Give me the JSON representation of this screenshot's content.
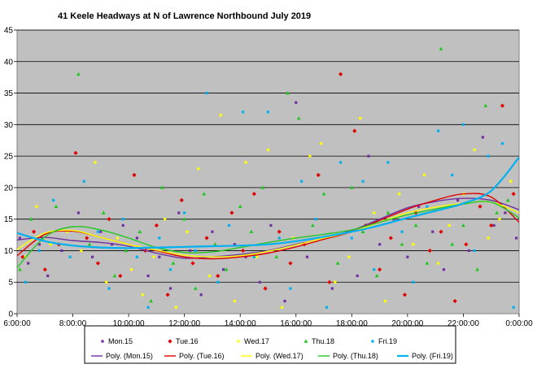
{
  "chart_data": {
    "type": "scatter",
    "title": "41 Keele Headways  at N of Lawrence  Northbound  July 2019",
    "x_ticks": [
      "6:00:00",
      "8:00:00",
      "10:00:00",
      "12:00:00",
      "14:00:00",
      "16:00:00",
      "18:00:00",
      "20:00:00",
      "22:00:00",
      "0:00:00"
    ],
    "x_range_hours": [
      6,
      24
    ],
    "ylim": [
      0,
      45
    ],
    "y_ticks": [
      0,
      5,
      10,
      15,
      20,
      25,
      30,
      35,
      40,
      45
    ],
    "grid": true,
    "plot_background": "#c0c0c0",
    "legend_position": "bottom",
    "series": [
      {
        "name": "Mon.15",
        "color": "#7030a0",
        "marker": "square",
        "points": [
          [
            6.1,
            12
          ],
          [
            6.4,
            8
          ],
          [
            6.8,
            11
          ],
          [
            7.1,
            6
          ],
          [
            7.6,
            10
          ],
          [
            8.2,
            16
          ],
          [
            8.7,
            9
          ],
          [
            9.0,
            13
          ],
          [
            9.4,
            11
          ],
          [
            9.8,
            14
          ],
          [
            10.3,
            12
          ],
          [
            10.7,
            6
          ],
          [
            11.1,
            9
          ],
          [
            11.5,
            4
          ],
          [
            11.8,
            16
          ],
          [
            12.2,
            10
          ],
          [
            12.6,
            3
          ],
          [
            13.0,
            13
          ],
          [
            13.4,
            7
          ],
          [
            13.8,
            11
          ],
          [
            14.2,
            9
          ],
          [
            14.7,
            5
          ],
          [
            15.1,
            14
          ],
          [
            15.6,
            2
          ],
          [
            16.0,
            33.5
          ],
          [
            16.4,
            9
          ],
          [
            16.9,
            12
          ],
          [
            17.3,
            4
          ],
          [
            17.8,
            13
          ],
          [
            18.2,
            6
          ],
          [
            18.6,
            25
          ],
          [
            19.0,
            11
          ],
          [
            19.5,
            15
          ],
          [
            20.0,
            9
          ],
          [
            20.4,
            17
          ],
          [
            20.9,
            13
          ],
          [
            21.3,
            7
          ],
          [
            21.8,
            18
          ],
          [
            22.2,
            10
          ],
          [
            22.7,
            28
          ],
          [
            23.1,
            14
          ],
          [
            23.5,
            16
          ],
          [
            23.9,
            12
          ]
        ],
        "trend": [
          [
            6,
            11.7
          ],
          [
            7,
            12.1
          ],
          [
            8,
            11.6
          ],
          [
            9,
            11.3
          ],
          [
            10,
            10.7
          ],
          [
            11,
            9.6
          ],
          [
            12,
            8.8
          ],
          [
            13,
            9.0
          ],
          [
            14,
            9.4
          ],
          [
            15,
            10.0
          ],
          [
            16,
            11.0
          ],
          [
            17,
            12.0
          ],
          [
            18,
            13.2
          ],
          [
            19,
            15.0
          ],
          [
            20,
            16.8
          ],
          [
            21,
            17.8
          ],
          [
            22,
            18.3
          ],
          [
            23,
            18.0
          ],
          [
            24,
            16.5
          ]
        ]
      },
      {
        "name": "Tue.16",
        "color": "#e00000",
        "marker": "diamond",
        "points": [
          [
            6.2,
            9
          ],
          [
            6.6,
            13
          ],
          [
            7.0,
            7
          ],
          [
            7.5,
            11
          ],
          [
            8.1,
            25.5
          ],
          [
            8.5,
            12
          ],
          [
            8.9,
            8
          ],
          [
            9.3,
            15
          ],
          [
            9.7,
            6
          ],
          [
            10.2,
            22
          ],
          [
            10.6,
            10
          ],
          [
            11.0,
            14
          ],
          [
            11.4,
            3
          ],
          [
            11.9,
            18
          ],
          [
            12.3,
            8
          ],
          [
            12.8,
            12
          ],
          [
            13.2,
            6
          ],
          [
            13.7,
            16
          ],
          [
            14.1,
            10
          ],
          [
            14.5,
            19
          ],
          [
            14.9,
            4
          ],
          [
            15.4,
            13
          ],
          [
            15.8,
            8
          ],
          [
            16.3,
            11
          ],
          [
            16.8,
            22
          ],
          [
            17.2,
            5
          ],
          [
            17.6,
            38
          ],
          [
            18.1,
            29
          ],
          [
            18.5,
            14
          ],
          [
            19.0,
            7
          ],
          [
            19.4,
            12
          ],
          [
            19.9,
            3
          ],
          [
            20.3,
            16
          ],
          [
            20.8,
            10
          ],
          [
            21.2,
            13
          ],
          [
            21.7,
            2
          ],
          [
            22.1,
            11
          ],
          [
            22.6,
            17
          ],
          [
            23.0,
            14
          ],
          [
            23.4,
            33
          ],
          [
            23.8,
            19
          ]
        ],
        "trend": [
          [
            6,
            9.2
          ],
          [
            7,
            12.6
          ],
          [
            8,
            13.1
          ],
          [
            9,
            12.1
          ],
          [
            10,
            11.0
          ],
          [
            11,
            10.0
          ],
          [
            12,
            9.0
          ],
          [
            13,
            8.7
          ],
          [
            14,
            9.0
          ],
          [
            15,
            9.6
          ],
          [
            16,
            10.6
          ],
          [
            17,
            11.8
          ],
          [
            18,
            13.0
          ],
          [
            19,
            14.8
          ],
          [
            20,
            16.6
          ],
          [
            21,
            18.0
          ],
          [
            22,
            19.0
          ],
          [
            23,
            18.5
          ],
          [
            24,
            14.5
          ]
        ]
      },
      {
        "name": "Wed.17",
        "color": "#ffff00",
        "marker": "square",
        "points": [
          [
            6.3,
            9
          ],
          [
            6.7,
            17
          ],
          [
            7.2,
            11
          ],
          [
            7.8,
            13
          ],
          [
            8.3,
            10
          ],
          [
            8.8,
            24
          ],
          [
            9.2,
            5
          ],
          [
            9.6,
            12
          ],
          [
            10.1,
            7
          ],
          [
            10.5,
            3
          ],
          [
            10.9,
            9
          ],
          [
            11.3,
            15
          ],
          [
            11.7,
            1
          ],
          [
            12.1,
            13
          ],
          [
            12.5,
            23
          ],
          [
            12.9,
            6
          ],
          [
            13.3,
            31.5
          ],
          [
            13.8,
            2
          ],
          [
            14.2,
            24
          ],
          [
            14.6,
            9
          ],
          [
            15.0,
            26
          ],
          [
            15.5,
            1
          ],
          [
            15.9,
            12
          ],
          [
            16.5,
            25
          ],
          [
            16.9,
            27
          ],
          [
            17.4,
            5
          ],
          [
            17.9,
            9
          ],
          [
            18.3,
            31
          ],
          [
            18.8,
            16
          ],
          [
            19.2,
            2
          ],
          [
            19.7,
            19
          ],
          [
            20.2,
            11
          ],
          [
            20.6,
            22
          ],
          [
            21.1,
            8
          ],
          [
            21.5,
            14
          ],
          [
            22.0,
            19
          ],
          [
            22.4,
            26
          ],
          [
            22.9,
            12
          ],
          [
            23.3,
            15
          ],
          [
            23.7,
            21
          ]
        ],
        "trend": [
          [
            6,
            10.2
          ],
          [
            7,
            12.8
          ],
          [
            8,
            13.2
          ],
          [
            9,
            12.1
          ],
          [
            10,
            11.0
          ],
          [
            11,
            10.1
          ],
          [
            12,
            9.3
          ],
          [
            13,
            9.0
          ],
          [
            14,
            9.2
          ],
          [
            15,
            9.9
          ],
          [
            16,
            10.9
          ],
          [
            17,
            12.0
          ],
          [
            18,
            13.0
          ],
          [
            19,
            14.5
          ],
          [
            20,
            16.0
          ],
          [
            21,
            16.9
          ],
          [
            22,
            17.5
          ],
          [
            23,
            17.7
          ],
          [
            24,
            16.0
          ]
        ]
      },
      {
        "name": "Thu.18",
        "color": "#22c722",
        "marker": "triangle",
        "points": [
          [
            6.1,
            7
          ],
          [
            6.5,
            15
          ],
          [
            6.9,
            12
          ],
          [
            7.4,
            17
          ],
          [
            8.2,
            38
          ],
          [
            8.6,
            11
          ],
          [
            9.1,
            16
          ],
          [
            9.5,
            6
          ],
          [
            9.9,
            10
          ],
          [
            10.4,
            13
          ],
          [
            10.8,
            2
          ],
          [
            11.2,
            20
          ],
          [
            11.6,
            8
          ],
          [
            12.0,
            15
          ],
          [
            12.4,
            4
          ],
          [
            12.7,
            19
          ],
          [
            13.1,
            11
          ],
          [
            13.5,
            7
          ],
          [
            14.0,
            17
          ],
          [
            14.4,
            13
          ],
          [
            14.8,
            20
          ],
          [
            15.3,
            9
          ],
          [
            15.7,
            35
          ],
          [
            16.1,
            31
          ],
          [
            16.6,
            14
          ],
          [
            17.0,
            19
          ],
          [
            17.5,
            8
          ],
          [
            18.0,
            20
          ],
          [
            18.4,
            13
          ],
          [
            18.9,
            6
          ],
          [
            19.3,
            16
          ],
          [
            19.8,
            11
          ],
          [
            20.3,
            14
          ],
          [
            20.7,
            8
          ],
          [
            21.2,
            42
          ],
          [
            21.6,
            11
          ],
          [
            22.0,
            14
          ],
          [
            22.5,
            7
          ],
          [
            22.8,
            33
          ],
          [
            23.2,
            16
          ],
          [
            23.6,
            18
          ]
        ],
        "trend": [
          [
            6,
            7.3
          ],
          [
            7,
            12.2
          ],
          [
            8,
            13.8
          ],
          [
            9,
            13.3
          ],
          [
            10,
            12.0
          ],
          [
            11,
            10.5
          ],
          [
            12,
            9.7
          ],
          [
            13,
            9.8
          ],
          [
            14,
            10.5
          ],
          [
            15,
            11.3
          ],
          [
            16,
            12.0
          ],
          [
            17,
            12.6
          ],
          [
            18,
            13.3
          ],
          [
            19,
            14.5
          ],
          [
            20,
            15.7
          ],
          [
            21,
            16.6
          ],
          [
            22,
            17.4
          ],
          [
            23,
            17.7
          ],
          [
            24,
            15.2
          ]
        ]
      },
      {
        "name": "Fri.19",
        "color": "#00b0f0",
        "marker": "square",
        "points": [
          [
            6.3,
            5
          ],
          [
            6.8,
            10
          ],
          [
            7.3,
            18
          ],
          [
            7.9,
            9
          ],
          [
            8.4,
            21
          ],
          [
            8.9,
            13
          ],
          [
            9.3,
            4
          ],
          [
            9.8,
            15
          ],
          [
            10.3,
            9
          ],
          [
            10.7,
            1
          ],
          [
            11.1,
            12
          ],
          [
            11.5,
            7
          ],
          [
            12.0,
            16
          ],
          [
            12.4,
            10
          ],
          [
            12.8,
            35
          ],
          [
            13.2,
            5
          ],
          [
            13.6,
            14
          ],
          [
            14.1,
            32
          ],
          [
            14.5,
            9
          ],
          [
            15.0,
            32
          ],
          [
            15.4,
            12
          ],
          [
            15.8,
            4
          ],
          [
            16.2,
            21
          ],
          [
            16.7,
            15
          ],
          [
            17.1,
            1
          ],
          [
            17.6,
            24
          ],
          [
            18.0,
            12
          ],
          [
            18.4,
            21
          ],
          [
            18.8,
            7
          ],
          [
            19.3,
            24
          ],
          [
            19.8,
            13
          ],
          [
            20.2,
            5
          ],
          [
            20.7,
            17
          ],
          [
            21.1,
            29
          ],
          [
            21.6,
            22
          ],
          [
            22.0,
            30
          ],
          [
            22.4,
            10
          ],
          [
            22.9,
            25
          ],
          [
            23.4,
            27
          ],
          [
            23.8,
            1
          ]
        ],
        "trend": [
          [
            6,
            12.8
          ],
          [
            7,
            11.5
          ],
          [
            8,
            10.8
          ],
          [
            9,
            10.5
          ],
          [
            10,
            10.4
          ],
          [
            11,
            10.5
          ],
          [
            12,
            10.6
          ],
          [
            13,
            10.7
          ],
          [
            14,
            10.8
          ],
          [
            15,
            11.0
          ],
          [
            16,
            11.5
          ],
          [
            17,
            12.2
          ],
          [
            18,
            13.0
          ],
          [
            19,
            14.0
          ],
          [
            20,
            15.2
          ],
          [
            21,
            16.3
          ],
          [
            22,
            17.5
          ],
          [
            23,
            19.5
          ],
          [
            24,
            24.8
          ]
        ]
      }
    ],
    "legend_markers": [
      "Mon.15",
      "Tue.16",
      "Wed.17",
      "Thu.18",
      "Fri.19"
    ],
    "legend_trends": [
      "Poly. (Mon.15)",
      "Poly. (Tue.16)",
      "Poly. (Wed.17)",
      "Poly. (Thu.18)",
      "Poly. (Fri.19)"
    ]
  }
}
